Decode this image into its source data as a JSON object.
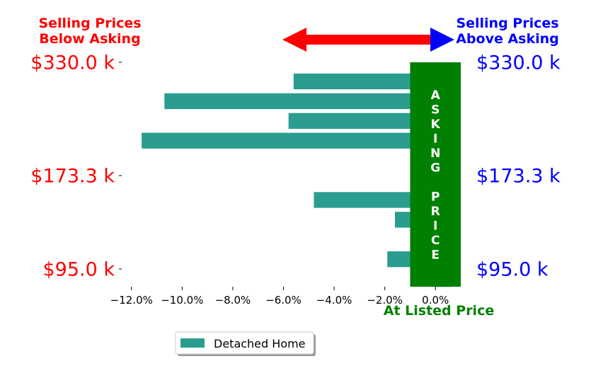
{
  "header": {
    "left_title": [
      "Selling Prices",
      "Below Asking"
    ],
    "right_title": [
      "Selling Prices",
      "Above Asking"
    ]
  },
  "colors": {
    "bar": "#2a9d8f",
    "asking_band": "#008000",
    "left_text": "#ff0000",
    "right_text": "#0000ff",
    "arrow_left": "#ff0000",
    "arrow_right": "#0000ff"
  },
  "chart_data": {
    "type": "bar",
    "orientation": "horizontal",
    "xlim": [
      -13,
      1
    ],
    "x_ticks": [
      -12,
      -10,
      -8,
      -6,
      -4,
      -2,
      0
    ],
    "x_tick_labels": [
      "−12.0%",
      "−10.0%",
      "−8.0%",
      "−6.0%",
      "−4.0%",
      "−2.0%",
      "0.0%"
    ],
    "left_price_labels": [
      "$330.0 k",
      "$173.3 k",
      "$95.0 k"
    ],
    "right_price_labels": [
      "$330.0 k",
      "$173.3 k",
      "$95.0 k"
    ],
    "band_text": [
      "A",
      "S",
      "K",
      "I",
      "N",
      "G",
      "",
      "P",
      "R",
      "I",
      "C",
      "E"
    ],
    "xlabel": "At Listed Price",
    "legend_position": "bottom-center",
    "series": [
      {
        "name": "Detached Home",
        "values": [
          -5.6,
          -10.7,
          -5.8,
          -11.6,
          0.6,
          0.6,
          -4.8,
          -1.6,
          0.6,
          -1.9,
          0.6
        ]
      }
    ]
  }
}
